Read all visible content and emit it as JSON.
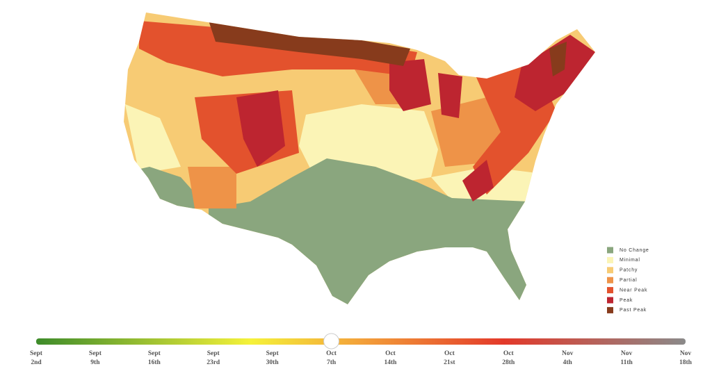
{
  "legend": {
    "items": [
      {
        "label": "No Change",
        "color": "#8aa67e"
      },
      {
        "label": "Minimal",
        "color": "#fbf4b6"
      },
      {
        "label": "Patchy",
        "color": "#f7cb74"
      },
      {
        "label": "Partial",
        "color": "#ee9348"
      },
      {
        "label": "Near Peak",
        "color": "#e3522d"
      },
      {
        "label": "Peak",
        "color": "#bd2530"
      },
      {
        "label": "Past Peak",
        "color": "#873b1c"
      }
    ]
  },
  "timeline": {
    "selected": 5,
    "dates": [
      {
        "month": "Sept",
        "day": "2nd"
      },
      {
        "month": "Sept",
        "day": "9th"
      },
      {
        "month": "Sept",
        "day": "16th"
      },
      {
        "month": "Sept",
        "day": "23rd"
      },
      {
        "month": "Sept",
        "day": "30th"
      },
      {
        "month": "Oct",
        "day": "7th"
      },
      {
        "month": "Oct",
        "day": "14th"
      },
      {
        "month": "Oct",
        "day": "21st"
      },
      {
        "month": "Oct",
        "day": "28th"
      },
      {
        "month": "Nov",
        "day": "4th"
      },
      {
        "month": "Nov",
        "day": "11th"
      },
      {
        "month": "Nov",
        "day": "18th"
      }
    ]
  }
}
